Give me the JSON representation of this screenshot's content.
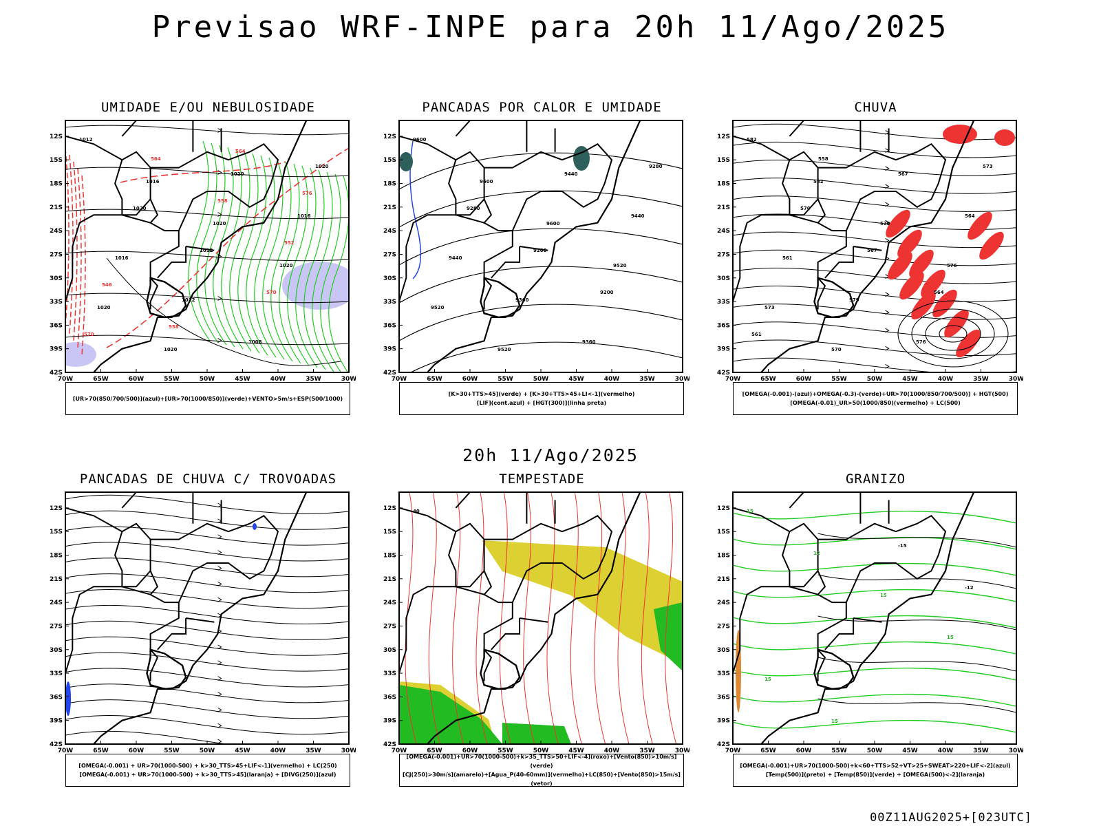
{
  "header": {
    "title": "Previsao WRF-INPE  para 20h 11/Ago/2025",
    "subtitle": "20h 11/Ago/2025",
    "footer": "00Z11AUG2025+[023UTC]"
  },
  "axes": {
    "y_ticks": [
      "12S",
      "15S",
      "18S",
      "21S",
      "24S",
      "27S",
      "30S",
      "33S",
      "36S",
      "39S",
      "42S"
    ],
    "x_ticks": [
      "70W",
      "65W",
      "60W",
      "55W",
      "50W",
      "45W",
      "40W",
      "35W",
      "30W"
    ]
  },
  "panels": [
    {
      "title": "UMIDADE E/OU NEBULOSIDADE",
      "legend": [
        "[UR>70(850/700/500)](azul)+[UR>70(1000/850)](verde)+VENTO>5m/s+ESP(500/1000)"
      ],
      "labels": [
        "1012",
        "1016",
        "1020",
        "1020",
        "1020",
        "1020",
        "1020",
        "1016",
        "1016",
        "1012",
        "1008",
        "1020",
        "1020",
        "1012",
        "570",
        "570",
        "564",
        "558",
        "552",
        "546",
        "558",
        "564",
        "576"
      ]
    },
    {
      "title": "PANCADAS POR CALOR E UMIDADE",
      "legend": [
        "[K>30+TTS>45](verde) + [K>30+TTS>45+LI<-1](vermelho)",
        "[LIF](cont.azul) + [HGT(300)](linha preta)"
      ],
      "labels": [
        "9600",
        "9600",
        "9600",
        "9520",
        "9520",
        "9520",
        "9440",
        "9440",
        "9440",
        "9360",
        "9360",
        "9280",
        "9280",
        "9200",
        "9200"
      ]
    },
    {
      "title": "CHUVA",
      "legend": [
        "[OMEGA(-0.001)-(azul)+OMEGA(-0.3)-(verde)+UR>70(1000/850/700/500)] + HGT(500)",
        "[OMEGA(-0.01)_UR>50(1000/850)(vermelho) + LC(500)"
      ],
      "labels": [
        "582",
        "582",
        "579",
        "576",
        "573",
        "570",
        "567",
        "564",
        "561",
        "579",
        "576",
        "573",
        "570",
        "567",
        "564",
        "561",
        "558"
      ]
    },
    {
      "title": "PANCADAS DE CHUVA C/ TROVOADAS",
      "legend": [
        "[OMEGA(-0.001) + UR>70(1000-500) + k>30_TTS>45+LIF<-1](vermelho) + LC(250)",
        "[OMEGA(-0.001) + UR>70(1000-500) + k>30_TTS>45](laranja) + [DIVG(250)](azul)"
      ],
      "labels": []
    },
    {
      "title": "TEMPESTADE",
      "legend": [
        "[OMEGA(-0.001)+UR>70(1000-500)+k>35_TTS>50+LIF<-4](roxo)+[Vento(850)>10m/s](verde)",
        "[CJ(250)>30m/s](amarelo)+[Agua_P(40-60mm)](vermelho)+LC(850)+[Vento(850)>15m/s](vetor)"
      ],
      "labels": [
        "40"
      ]
    },
    {
      "title": "GRANIZO",
      "legend": [
        "[OMEGA(-0.001)+UR>70(1000-500)+k<60+TTS>52+VT>25+SWEAT>220+LIF<-2](azul)",
        "[Temp(500)](preto) + [Temp(850)](verde) + [OMEGA(500)<-2](laranja)"
      ],
      "labels": [
        "15",
        "12",
        "15",
        "15",
        "15",
        "15",
        "-15",
        "-12"
      ]
    }
  ]
}
